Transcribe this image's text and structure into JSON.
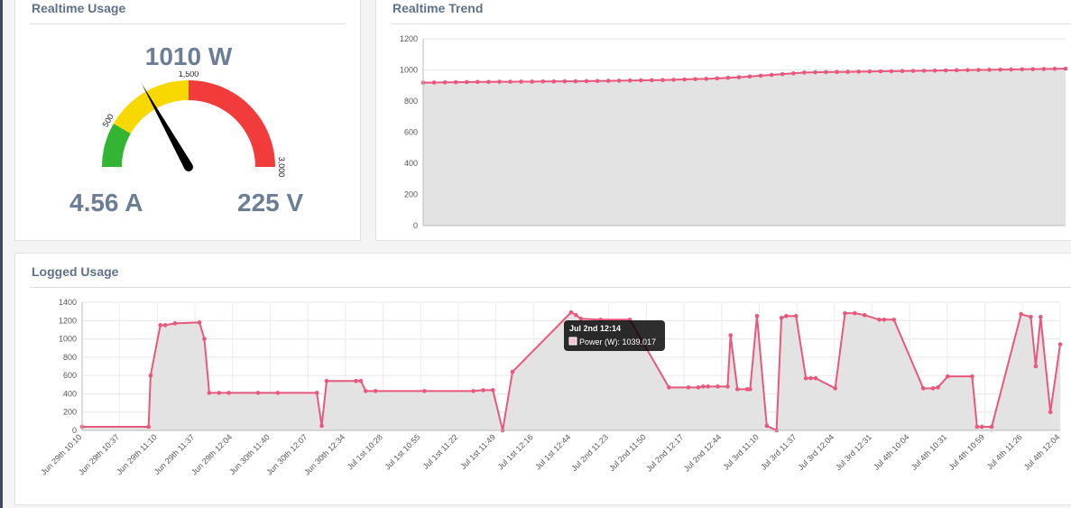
{
  "gauge_panel": {
    "title": "Realtime Usage",
    "power": "1010 W",
    "current": "4.56 A",
    "voltage": "225 V",
    "gauge": {
      "min": 0,
      "max": 3000,
      "value": 1010,
      "labels": [
        "500",
        "1,500",
        "3,000"
      ],
      "bands": [
        {
          "from": 0,
          "to": 500,
          "color": "#33b533"
        },
        {
          "from": 500,
          "to": 1500,
          "color": "#f7d800"
        },
        {
          "from": 1500,
          "to": 3000,
          "color": "#f23b3b"
        }
      ]
    }
  },
  "trend_panel": {
    "title": "Realtime Trend",
    "chart_data": {
      "type": "line",
      "ylim": [
        0,
        1200
      ],
      "yticks": [
        "0",
        "200",
        "400",
        "600",
        "800",
        "1000",
        "1200"
      ],
      "values": [
        918,
        919,
        920,
        921,
        922,
        923,
        923,
        924,
        924,
        925,
        925,
        926,
        926,
        927,
        927,
        928,
        929,
        930,
        931,
        932,
        933,
        934,
        935,
        937,
        939,
        941,
        943,
        946,
        949,
        953,
        958,
        963,
        968,
        973,
        978,
        983,
        985,
        986,
        987,
        988,
        989,
        990,
        991,
        992,
        993,
        994,
        995,
        996,
        997,
        998,
        999,
        1000,
        1001,
        1002,
        1003,
        1004,
        1005,
        1006,
        1007,
        1008
      ],
      "color": "#e8587d"
    }
  },
  "logged_panel": {
    "title": "Logged Usage",
    "tooltip": {
      "title": "Jul 2nd 12:14",
      "label": "Power (W): 1039.017"
    },
    "chart_data": {
      "type": "area",
      "ylim": [
        0,
        1400
      ],
      "yticks": [
        "0",
        "200",
        "400",
        "600",
        "800",
        "1000",
        "1200",
        "1400"
      ],
      "categories": [
        "Jun 29th 10:10",
        "Jun 29th 10:37",
        "Jun 29th 11:10",
        "Jun 29th 11:37",
        "Jun 29th 12:04",
        "Jun 30th 11:40",
        "Jun 30th 12:07",
        "Jun 30th 12:34",
        "Jul 1st 10:28",
        "Jul 1st 10:55",
        "Jul 1st 11:22",
        "Jul 1st 11:49",
        "Jul 1st 12:16",
        "Jul 1st 12:44",
        "Jul 2nd 11:23",
        "Jul 2nd 11:50",
        "Jul 2nd 12:17",
        "Jul 2nd 12:44",
        "Jul 3rd 11:10",
        "Jul 3rd 11:37",
        "Jul 3rd 12:04",
        "Jul 3rd 12:31",
        "Jul 4th 10:04",
        "Jul 4th 10:31",
        "Jul 4th 10:59",
        "Jul 4th 11:26",
        "Jul 4th 12:04"
      ],
      "x": [
        0,
        0.068,
        0.07,
        0.08,
        0.085,
        0.095,
        0.12,
        0.125,
        0.13,
        0.14,
        0.15,
        0.18,
        0.2,
        0.24,
        0.245,
        0.25,
        0.28,
        0.285,
        0.29,
        0.3,
        0.35,
        0.4,
        0.41,
        0.42,
        0.43,
        0.44,
        0.5,
        0.505,
        0.51,
        0.53,
        0.56,
        0.6,
        0.62,
        0.63,
        0.635,
        0.64,
        0.65,
        0.66,
        0.663,
        0.67,
        0.68,
        0.683,
        0.69,
        0.7,
        0.71,
        0.715,
        0.72,
        0.73,
        0.74,
        0.745,
        0.75,
        0.77,
        0.78,
        0.79,
        0.8,
        0.815,
        0.82,
        0.83,
        0.86,
        0.87,
        0.875,
        0.885,
        0.91,
        0.915,
        0.92,
        0.93,
        0.96,
        0.97,
        0.975,
        0.98,
        0.99,
        1
      ],
      "values": [
        40,
        40,
        600,
        1150,
        1150,
        1170,
        1180,
        1000,
        410,
        410,
        410,
        410,
        410,
        410,
        50,
        540,
        540,
        540,
        430,
        430,
        430,
        430,
        440,
        440,
        0,
        640,
        1290,
        1260,
        1220,
        1210,
        1210,
        470,
        470,
        470,
        480,
        480,
        480,
        480,
        1040,
        450,
        450,
        450,
        1250,
        50,
        0,
        1230,
        1250,
        1250,
        570,
        570,
        570,
        460,
        1280,
        1280,
        1260,
        1210,
        1210,
        1210,
        460,
        460,
        470,
        590,
        590,
        40,
        40,
        40,
        1270,
        1240,
        700,
        1240,
        200,
        940
      ],
      "color": "#e8587d"
    }
  }
}
